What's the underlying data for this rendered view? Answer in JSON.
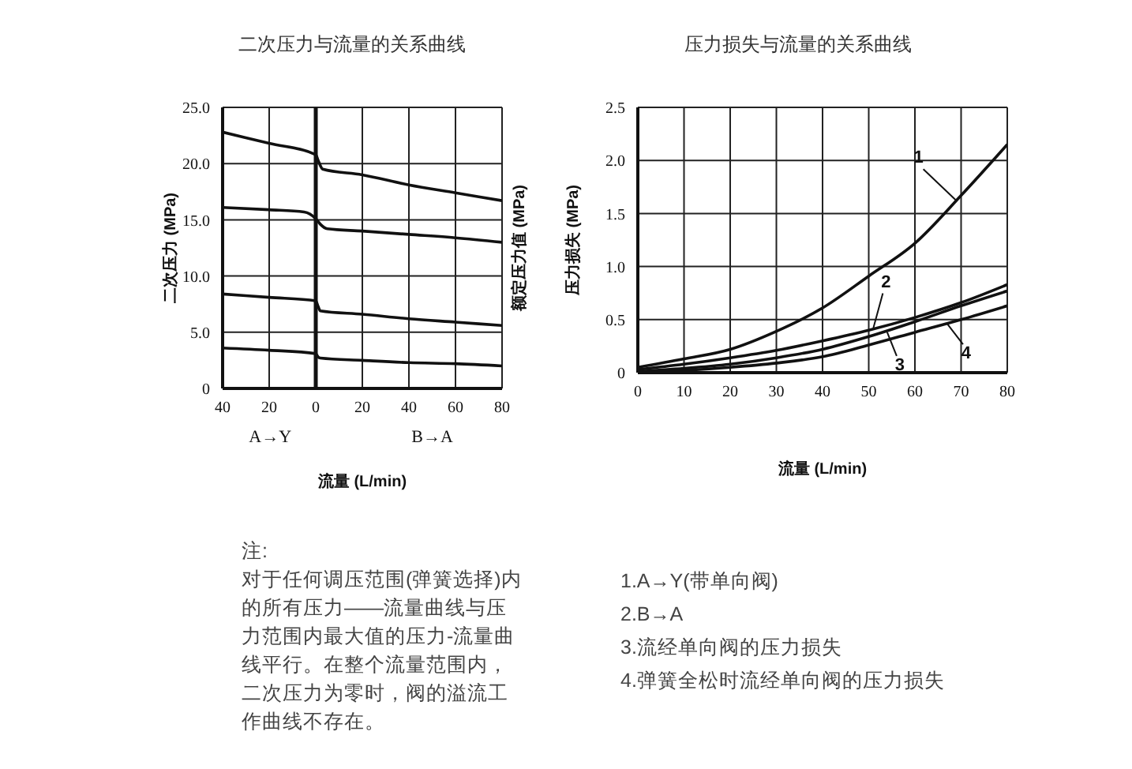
{
  "chart_data": [
    {
      "type": "line",
      "title": "二次压力与流量的关系曲线",
      "xlabel": "流量 (L/min)",
      "ylabel": "二次压力 (MPa)",
      "y2label": "额定压力值 (MPa)",
      "xlim": [
        -40,
        80
      ],
      "xticks": [
        {
          "value": -40,
          "label": "40"
        },
        {
          "value": -20,
          "label": "20"
        },
        0,
        20,
        40,
        60,
        80
      ],
      "ylim": [
        0,
        25
      ],
      "yticks": [
        0,
        {
          "value": 5,
          "label": "5.0"
        },
        {
          "value": 10,
          "label": "10.0"
        },
        {
          "value": 15,
          "label": "15.0"
        },
        {
          "value": 20,
          "label": "20.0"
        },
        {
          "value": 25,
          "label": "25.0"
        }
      ],
      "grid": true,
      "marker": "none",
      "line_style": "solid",
      "ref_lines": [
        {
          "axis": "x",
          "value": 0,
          "color": "#111111"
        }
      ],
      "series": [
        {
          "color": "#111111",
          "x": [
            -40,
            -20,
            0,
            1,
            3,
            20,
            40,
            60,
            80
          ],
          "values": [
            22.8,
            21.8,
            20.8,
            20.3,
            19.5,
            19.0,
            18.1,
            17.4,
            16.7
          ]
        },
        {
          "color": "#111111",
          "x": [
            -40,
            -20,
            -5,
            0,
            2,
            5,
            20,
            40,
            60,
            80
          ],
          "values": [
            16.1,
            15.9,
            15.7,
            15.1,
            14.6,
            14.2,
            14.0,
            13.7,
            13.4,
            13.0
          ]
        },
        {
          "color": "#111111",
          "x": [
            -40,
            -20,
            0,
            1,
            2,
            20,
            40,
            60,
            80
          ],
          "values": [
            8.4,
            8.1,
            7.8,
            7.3,
            6.9,
            6.6,
            6.2,
            5.9,
            5.6
          ]
        },
        {
          "color": "#111111",
          "x": [
            -40,
            -20,
            0,
            1,
            2,
            20,
            40,
            60,
            80
          ],
          "values": [
            3.6,
            3.4,
            3.1,
            2.8,
            2.7,
            2.5,
            2.3,
            2.2,
            2.0
          ]
        }
      ],
      "annotations": [
        "A→Y",
        "B→A",
        "注:",
        "对于任何调压范围(弹簧选择)内的所有压力——流量曲线与压力范围内最大值的压力-流量曲线平行。在整个流量范围内，二次压力为零时，阀的溢流工作曲线不存在。"
      ]
    },
    {
      "type": "line",
      "title": "压力损失与流量的关系曲线",
      "xlabel": "流量 (L/min)",
      "ylabel": "压力损失 (MPa)",
      "xlim": [
        0,
        80
      ],
      "xticks": [
        0,
        10,
        20,
        30,
        40,
        50,
        60,
        70,
        80
      ],
      "ylim": [
        0,
        2.5
      ],
      "yticks": [
        0,
        0.5,
        {
          "value": 1,
          "label": "1.0"
        },
        1.5,
        {
          "value": 2,
          "label": "2.0"
        },
        2.5
      ],
      "grid": true,
      "marker": "none",
      "line_style": "solid",
      "x": [
        0,
        10,
        20,
        30,
        40,
        50,
        60,
        70,
        80
      ],
      "series": [
        {
          "color": "#111111",
          "values": [
            0.05,
            0.13,
            0.22,
            0.39,
            0.61,
            0.91,
            1.22,
            1.67,
            2.15
          ]
        },
        {
          "color": "#111111",
          "values": [
            0.03,
            0.08,
            0.14,
            0.21,
            0.3,
            0.4,
            0.52,
            0.66,
            0.83
          ]
        },
        {
          "color": "#111111",
          "values": [
            0.01,
            0.04,
            0.08,
            0.14,
            0.22,
            0.34,
            0.48,
            0.63,
            0.77
          ]
        },
        {
          "color": "#111111",
          "values": [
            0.0,
            0.02,
            0.05,
            0.09,
            0.15,
            0.26,
            0.38,
            0.5,
            0.63
          ]
        }
      ],
      "annotations": [
        {
          "text": "1",
          "x": 69,
          "y": 1.62
        },
        {
          "text": "2",
          "x": 51,
          "y": 0.42
        },
        {
          "text": "3",
          "x": 54,
          "y": 0.38
        },
        {
          "text": "4",
          "x": 67,
          "y": 0.46
        },
        "1.A→Y(带单向阀)",
        "2.B→A",
        "3.流经单向阀的压力损失",
        "4.弹簧全松时流经单向阀的压力损失"
      ]
    }
  ]
}
